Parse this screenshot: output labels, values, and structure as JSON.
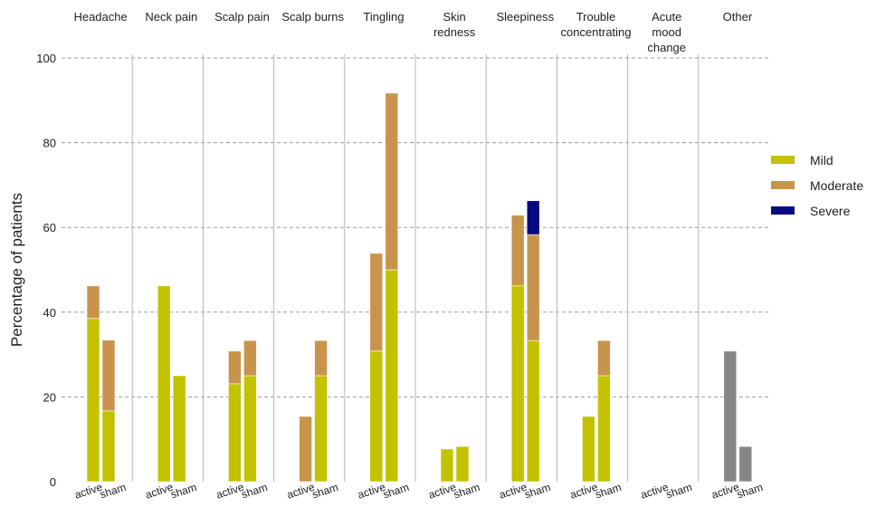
{
  "chart_data": {
    "type": "bar",
    "stacked": true,
    "title": "",
    "ylabel": "Percentage of patients",
    "xlabel": "",
    "ylim": [
      0,
      100
    ],
    "yticks": [
      0,
      20,
      40,
      60,
      80,
      100
    ],
    "grid": "horizontal dashed",
    "legend_position": "right",
    "bar_labels": [
      "active",
      "sham"
    ],
    "groups": [
      {
        "label": [
          "Headache"
        ],
        "active": {
          "Mild": 38.5,
          "Moderate": 7.7,
          "Severe": 0
        },
        "sham": {
          "Mild": 16.7,
          "Moderate": 16.7,
          "Severe": 0
        }
      },
      {
        "label": [
          "Neck pain"
        ],
        "active": {
          "Mild": 46.2,
          "Moderate": 0,
          "Severe": 0
        },
        "sham": {
          "Mild": 25.0,
          "Moderate": 0,
          "Severe": 0
        }
      },
      {
        "label": [
          "Scalp pain"
        ],
        "active": {
          "Mild": 23.1,
          "Moderate": 7.7,
          "Severe": 0
        },
        "sham": {
          "Mild": 25.0,
          "Moderate": 8.3,
          "Severe": 0
        }
      },
      {
        "label": [
          "Scalp burns"
        ],
        "active": {
          "Mild": 0,
          "Moderate": 15.4,
          "Severe": 0
        },
        "sham": {
          "Mild": 25.0,
          "Moderate": 8.3,
          "Severe": 0
        }
      },
      {
        "label": [
          "Tingling"
        ],
        "active": {
          "Mild": 30.8,
          "Moderate": 23.1,
          "Severe": 0
        },
        "sham": {
          "Mild": 50.0,
          "Moderate": 41.7,
          "Severe": 0
        }
      },
      {
        "label": [
          "Skin",
          "redness"
        ],
        "active": {
          "Mild": 7.7,
          "Moderate": 0,
          "Severe": 0
        },
        "sham": {
          "Mild": 8.3,
          "Moderate": 0,
          "Severe": 0
        }
      },
      {
        "label": [
          "Sleepiness"
        ],
        "active": {
          "Mild": 46.2,
          "Moderate": 16.7,
          "Severe": 0
        },
        "sham": {
          "Mild": 33.3,
          "Moderate": 25.0,
          "Severe": 8.0
        }
      },
      {
        "label": [
          "Trouble",
          "concentrating"
        ],
        "active": {
          "Mild": 15.4,
          "Moderate": 0,
          "Severe": 0
        },
        "sham": {
          "Mild": 25.0,
          "Moderate": 8.3,
          "Severe": 0
        }
      },
      {
        "label": [
          "Acute",
          "mood",
          "change"
        ],
        "active": {
          "Mild": 0,
          "Moderate": 0,
          "Severe": 0
        },
        "sham": {
          "Mild": 0,
          "Moderate": 0,
          "Severe": 0
        }
      },
      {
        "label": [
          "Other"
        ],
        "active": {
          "Other": 30.8
        },
        "sham": {
          "Other": 8.3
        }
      }
    ],
    "series": [
      {
        "name": "Mild",
        "color": "#c2c200"
      },
      {
        "name": "Moderate",
        "color": "#c8944c"
      },
      {
        "name": "Severe",
        "color": "#0a0a80"
      }
    ],
    "other_color": "#858585"
  }
}
